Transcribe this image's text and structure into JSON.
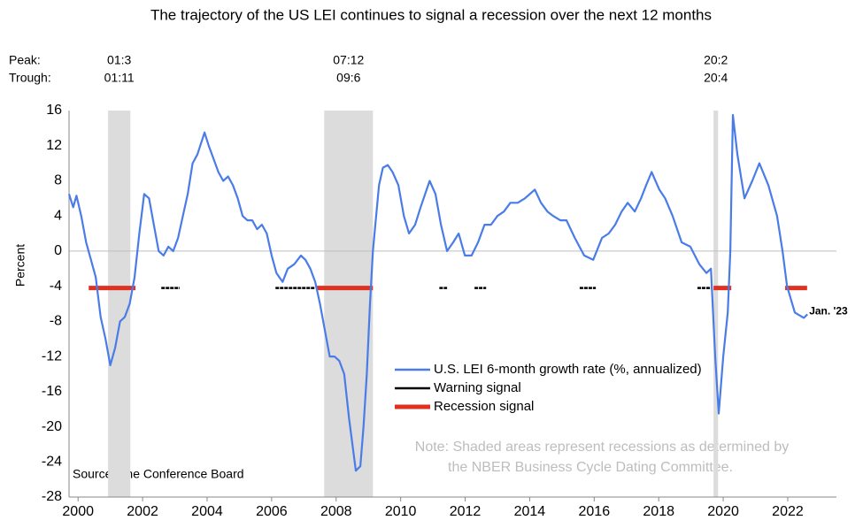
{
  "chart_data": {
    "type": "line",
    "title": "The trajectory of the US LEI continues to signal a recession over the next 12 months",
    "y_label": "Percent",
    "peak_label": "Peak:",
    "trough_label": "Trough:",
    "source": "Source: The Conference Board",
    "note": [
      "Note: Shaded areas represent recessions as determined by",
      "the NBER Business Cycle Dating Committee."
    ],
    "end_label": "Jan. '23",
    "xlim": [
      1999.72,
      2023.51
    ],
    "xticks": [
      2000,
      2002,
      2004,
      2006,
      2008,
      2010,
      2012,
      2014,
      2016,
      2018,
      2020,
      2022
    ],
    "ylim": [
      -28,
      16
    ],
    "yticks": [
      -28,
      -24,
      -20,
      -16,
      -12,
      -8,
      -4,
      0,
      4,
      8,
      12,
      16
    ],
    "recessions": [
      {
        "start": 2000.93,
        "end": 2001.62,
        "peak": "01:3",
        "trough": "01:11"
      },
      {
        "start": 2007.63,
        "end": 2009.14,
        "peak": "07:12",
        "trough": "09:6"
      },
      {
        "start": 2019.7,
        "end": 2019.84,
        "peak": "20:2",
        "trough": "20:4"
      }
    ],
    "x": [
      1999.72,
      1999.85,
      1999.95,
      2000.1,
      2000.25,
      2000.4,
      2000.55,
      2000.7,
      2000.85,
      2001.0,
      2001.15,
      2001.3,
      2001.45,
      2001.6,
      2001.75,
      2001.9,
      2002.05,
      2002.2,
      2002.35,
      2002.5,
      2002.65,
      2002.8,
      2002.95,
      2003.1,
      2003.25,
      2003.4,
      2003.55,
      2003.7,
      2003.92,
      2004.05,
      2004.2,
      2004.35,
      2004.5,
      2004.65,
      2004.8,
      2004.95,
      2005.1,
      2005.25,
      2005.4,
      2005.55,
      2005.7,
      2005.85,
      2006.0,
      2006.15,
      2006.34,
      2006.5,
      2006.7,
      2006.91,
      2007.05,
      2007.2,
      2007.35,
      2007.5,
      2007.65,
      2007.8,
      2007.95,
      2008.1,
      2008.25,
      2008.4,
      2008.61,
      2008.75,
      2008.85,
      2008.95,
      2009.05,
      2009.14,
      2009.33,
      2009.45,
      2009.6,
      2009.75,
      2009.93,
      2010.1,
      2010.26,
      2010.45,
      2010.62,
      2010.9,
      2011.08,
      2011.25,
      2011.44,
      2011.63,
      2011.8,
      2011.99,
      2012.2,
      2012.4,
      2012.6,
      2012.8,
      2013.0,
      2013.2,
      2013.4,
      2013.63,
      2013.85,
      2014.16,
      2014.35,
      2014.55,
      2014.73,
      2014.95,
      2015.14,
      2015.4,
      2015.69,
      2015.97,
      2016.24,
      2016.45,
      2016.65,
      2016.85,
      2017.04,
      2017.26,
      2017.45,
      2017.61,
      2017.78,
      2018.02,
      2018.2,
      2018.43,
      2018.71,
      2018.98,
      2019.26,
      2019.48,
      2019.62,
      2019.75,
      2019.86,
      2020.0,
      2020.14,
      2020.22,
      2020.3,
      2020.44,
      2020.66,
      2020.9,
      2021.12,
      2021.4,
      2021.67,
      2021.84,
      2021.98,
      2022.22,
      2022.5,
      2022.61
    ],
    "series": [
      {
        "name": "U.S. LEI 6-month growth rate (%, annualized)",
        "color": "#4a7ce8",
        "values": [
          6.5,
          5,
          6.3,
          4,
          1,
          -1,
          -3,
          -7.5,
          -10,
          -13,
          -11,
          -8,
          -7.5,
          -6,
          -3,
          2,
          6.5,
          6,
          3,
          0,
          -0.5,
          0.5,
          0,
          1.5,
          4,
          6.5,
          10,
          11,
          13.5,
          12,
          10.5,
          9,
          8,
          8.5,
          7.5,
          6,
          4,
          3.5,
          3.5,
          2.5,
          3,
          2,
          -0.5,
          -2.5,
          -3.5,
          -2,
          -1.5,
          -0.5,
          -1,
          -2,
          -3.5,
          -6,
          -9,
          -12,
          -12,
          -12.5,
          -14,
          -19,
          -25,
          -24.5,
          -20,
          -14,
          -6,
          0,
          7.5,
          9.5,
          9.8,
          9,
          7.5,
          4,
          2,
          3,
          5,
          8,
          6.5,
          3,
          0,
          1,
          2,
          -0.5,
          -0.5,
          1,
          3,
          3,
          4,
          4.5,
          5.5,
          5.5,
          6,
          7,
          5.5,
          4.5,
          4,
          3.5,
          3.5,
          1.5,
          -0.5,
          -1,
          1.5,
          2,
          3,
          4.5,
          5.5,
          4.5,
          6,
          7.5,
          9,
          7,
          6,
          4,
          1,
          0.5,
          -1.5,
          -2.5,
          -2,
          -12,
          -18.5,
          -12,
          -7,
          0,
          15.5,
          11,
          6,
          8,
          10,
          7.5,
          4,
          0,
          -4,
          -7,
          -7.6,
          -7.2
        ]
      }
    ],
    "signal_level": -4.2,
    "signals": [
      {
        "name": "Warning signal",
        "color": "#000000",
        "segments": [
          [
            2002.58,
            2003.15
          ],
          [
            2006.12,
            2007.33
          ],
          [
            2011.2,
            2011.44
          ],
          [
            2012.29,
            2012.65
          ],
          [
            2015.55,
            2016.05
          ],
          [
            2019.2,
            2019.62
          ]
        ]
      },
      {
        "name": "Recession signal",
        "color": "#e03020",
        "segments": [
          [
            2000.33,
            2001.78
          ],
          [
            2007.38,
            2009.14
          ],
          [
            2019.7,
            2020.25
          ],
          [
            2021.92,
            2022.6
          ]
        ]
      }
    ]
  }
}
